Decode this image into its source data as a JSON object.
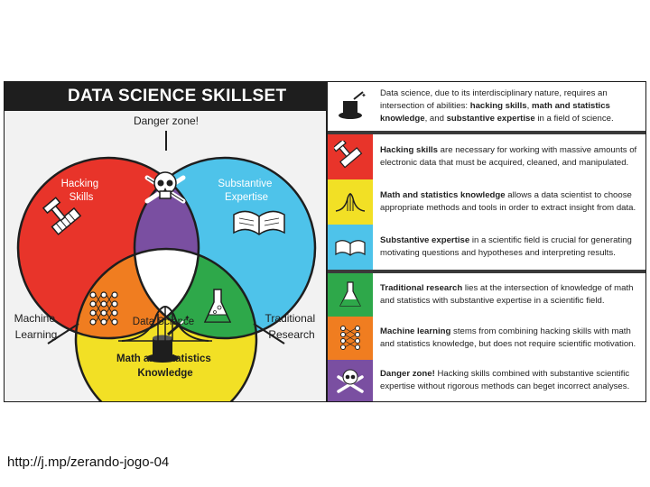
{
  "title": "DATA SCIENCE SKILLSET",
  "venn": {
    "danger_zone": "Danger zone!",
    "hacking": [
      "Hacking",
      "Skills"
    ],
    "substantive": [
      "Substantive",
      "Expertise"
    ],
    "data_science": "Data Science",
    "math": [
      "Math and Statistics",
      "Knowledge"
    ],
    "machine_learning": [
      "Machine",
      "Learning"
    ],
    "traditional_research": [
      "Traditional",
      "Research"
    ],
    "colors": {
      "hacking": "#e8342a",
      "substantive": "#4ec3ea",
      "math": "#f2e025",
      "danger": "#7a4fa1",
      "machine_learning": "#f07d20",
      "traditional": "#2ea84a",
      "center": "#ffffff"
    }
  },
  "rows": [
    {
      "icon": "magic-hat-icon",
      "color": "#ffffff",
      "segments": [
        {
          "t": "Data science, due to its interdisciplinary nature, requires an intersection of abilities: ",
          "b": false
        },
        {
          "t": "hacking skills",
          "b": true
        },
        {
          "t": ", ",
          "b": false
        },
        {
          "t": "math and statistics knowledge",
          "b": true
        },
        {
          "t": ", and ",
          "b": false
        },
        {
          "t": "substantive expertise",
          "b": true
        },
        {
          "t": " in a field of science.",
          "b": false
        }
      ]
    },
    {
      "icon": "hammer-and-keyboard-icon",
      "color": "#e8342a",
      "segments": [
        {
          "t": "Hacking skills",
          "b": true
        },
        {
          "t": " are necessary for working with massive amounts of electronic data that must be acquired, cleaned, and manipulated.",
          "b": false
        }
      ]
    },
    {
      "icon": "bell-curve-icon",
      "color": "#f2e025",
      "segments": [
        {
          "t": "Math and statistics knowledge",
          "b": true
        },
        {
          "t": " allows a data scientist to choose appropriate methods and tools in order to extract insight from data.",
          "b": false
        }
      ]
    },
    {
      "icon": "open-book-icon",
      "color": "#4ec3ea",
      "segments": [
        {
          "t": "Substantive expertise",
          "b": true
        },
        {
          "t": " in a scientific field is crucial for generating motivating questions and hypotheses and interpreting results.",
          "b": false
        }
      ]
    },
    {
      "icon": "flask-icon",
      "color": "#2ea84a",
      "segments": [
        {
          "t": "Traditional research",
          "b": true
        },
        {
          "t": " lies at the intersection of knowledge of math and statistics with substantive expertise in a scientific field.",
          "b": false
        }
      ]
    },
    {
      "icon": "neural-network-icon",
      "color": "#f07d20",
      "segments": [
        {
          "t": "Machine learning",
          "b": true
        },
        {
          "t": " stems from combining hacking skills with math and statistics knowledge, but does not require scientific motivation.",
          "b": false
        }
      ]
    },
    {
      "icon": "skull-crossbones-icon",
      "color": "#7a4fa1",
      "segments": [
        {
          "t": "Danger zone!",
          "b": true
        },
        {
          "t": " Hacking skills combined with substantive scientific expertise without rigorous methods can beget incorrect analyses.",
          "b": false
        }
      ]
    }
  ],
  "footer_url": "http://j.mp/zerando-jogo-04"
}
